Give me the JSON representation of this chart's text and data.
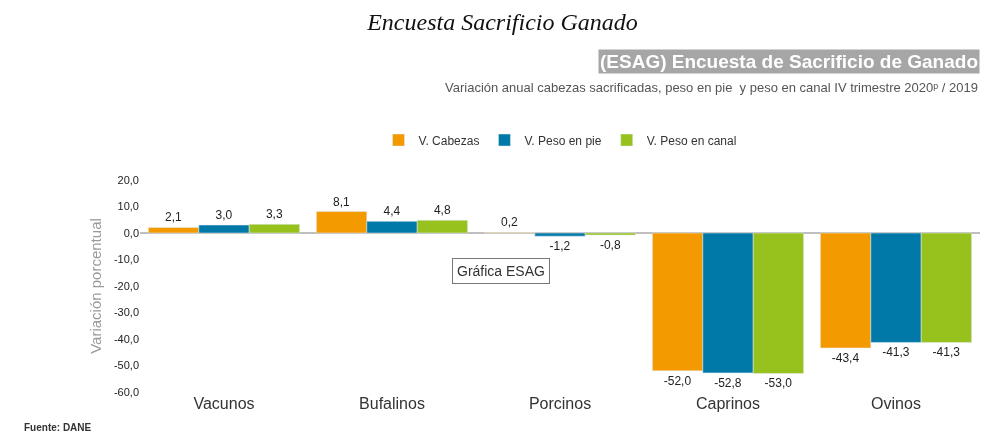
{
  "chart_data": {
    "type": "bar",
    "title": "Encuesta Sacrificio Ganado",
    "subtitle": "(ESAG) Encuesta de Sacrificio de Ganado",
    "ylabel": "Variación porcentual",
    "categories": [
      "Vacunos",
      "Bufalinos",
      "Porcinos",
      "Caprinos",
      "Ovinos"
    ],
    "series": [
      {
        "name": "V. Cabezas",
        "color": "#f39a00",
        "values": [
          2.1,
          8.1,
          0.2,
          -52.0,
          -43.4
        ],
        "value_labels": [
          "2,1",
          "8,1",
          "0,2",
          "-52,0",
          "-43,4"
        ]
      },
      {
        "name": "V. Peso en pie",
        "color": "#0079a8",
        "values": [
          3.0,
          4.4,
          -1.2,
          -52.8,
          -41.3
        ],
        "value_labels": [
          "3,0",
          "4,4",
          "-1,2",
          "-52,8",
          "-41,3"
        ]
      },
      {
        "name": "V. Peso en canal",
        "color": "#97c21e",
        "values": [
          3.3,
          4.8,
          -0.8,
          -53.0,
          -41.3
        ],
        "value_labels": [
          "3,3",
          "4,8",
          "-0,8",
          "-53,0",
          "-41,3"
        ]
      }
    ],
    "ylim": [
      -60,
      20
    ],
    "yticks": [
      {
        "value": 20,
        "label": "20,0"
      },
      {
        "value": 10,
        "label": "10,0"
      },
      {
        "value": 0,
        "label": "0,0"
      },
      {
        "value": -10,
        "label": "-10,0"
      },
      {
        "value": -20,
        "label": "-20,0"
      },
      {
        "value": -30,
        "label": "-30,0"
      },
      {
        "value": -40,
        "label": "-40,0"
      },
      {
        "value": -50,
        "label": "-50,0"
      },
      {
        "value": -60,
        "label": "-60,0"
      }
    ],
    "annotations": [
      "Variación anual cabezas sacrificadas, peso en pie  y peso en canal IV trimestre 2020ᵖ / 2019",
      "Gráfica ESAG",
      "Fuente: DANE"
    ],
    "ref_lines": [
      {
        "axis": "y",
        "value": 0,
        "color": "#aaaaaa"
      }
    ],
    "grid": false,
    "legend": "top"
  }
}
